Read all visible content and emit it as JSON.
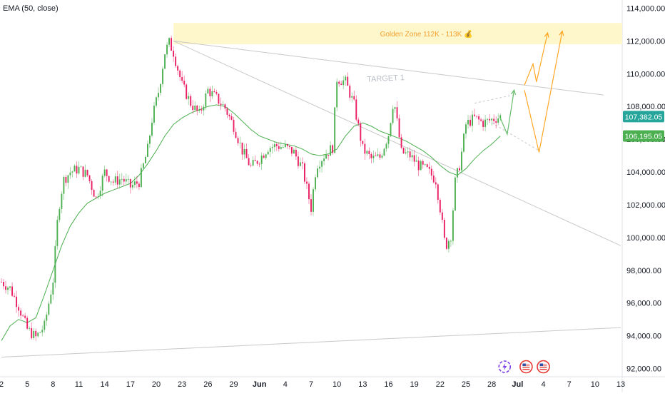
{
  "indicator": {
    "label": "EMA (50, close)",
    "color": "#4caf50"
  },
  "annotations": {
    "golden_zone": {
      "label": "Golden Zone 112K - 113K 💰",
      "y_from": 111800,
      "y_to": 113100,
      "fill": "#fff7cc",
      "text_color": "#f0a030"
    },
    "target1": {
      "label": "TARGET 1",
      "color": "#b8bcc4"
    }
  },
  "price_labels": {
    "last": {
      "text": "107,382.05",
      "value": 107382.05,
      "color": "#26a69a"
    },
    "ema": {
      "text": "106,195.05",
      "value": 106195.05,
      "color": "#4caf50"
    }
  },
  "colors": {
    "up": "#4caf50",
    "down": "#e91e63",
    "wick": "#888888",
    "trend": "#c8c8c8",
    "forecast_green": "#66bb6a",
    "forecast_orange": "#ffa726",
    "event_purple": "#7b3fe4",
    "event_red": "#e53935"
  },
  "chart_data": {
    "type": "candlestick",
    "y_axis": {
      "ticks": [
        92000,
        94000,
        96000,
        98000,
        100000,
        102000,
        104000,
        106000,
        108000,
        110000,
        112000,
        114000
      ],
      "tick_labels": [
        "92,000.00",
        "94,000.00",
        "96,000.00",
        "98,000.00",
        "100,000.00",
        "102,000.00",
        "104,000.00",
        "106,000.00",
        "108,000.00",
        "110,000.00",
        "112,000.00",
        "114,000.00"
      ],
      "range": [
        91500,
        114500
      ]
    },
    "x_axis": {
      "ticks": [
        {
          "label": "2",
          "day": 2,
          "bold": false
        },
        {
          "label": "5",
          "day": 5,
          "bold": false
        },
        {
          "label": "8",
          "day": 8,
          "bold": false
        },
        {
          "label": "11",
          "day": 11,
          "bold": false
        },
        {
          "label": "14",
          "day": 14,
          "bold": false
        },
        {
          "label": "17",
          "day": 17,
          "bold": false
        },
        {
          "label": "20",
          "day": 20,
          "bold": false
        },
        {
          "label": "23",
          "day": 23,
          "bold": false
        },
        {
          "label": "26",
          "day": 26,
          "bold": false
        },
        {
          "label": "29",
          "day": 29,
          "bold": false
        },
        {
          "label": "Jun",
          "day": 32,
          "bold": true
        },
        {
          "label": "4",
          "day": 35,
          "bold": false
        },
        {
          "label": "7",
          "day": 38,
          "bold": false
        },
        {
          "label": "10",
          "day": 41,
          "bold": false
        },
        {
          "label": "13",
          "day": 44,
          "bold": false
        },
        {
          "label": "16",
          "day": 47,
          "bold": false
        },
        {
          "label": "19",
          "day": 50,
          "bold": false
        },
        {
          "label": "22",
          "day": 53,
          "bold": false
        },
        {
          "label": "25",
          "day": 56,
          "bold": false
        },
        {
          "label": "28",
          "day": 59,
          "bold": false
        },
        {
          "label": "Jul",
          "day": 62,
          "bold": true
        },
        {
          "label": "4",
          "day": 65,
          "bold": false
        },
        {
          "label": "7",
          "day": 68,
          "bold": false
        },
        {
          "label": "10",
          "day": 71,
          "bold": false
        },
        {
          "label": "13",
          "day": 74,
          "bold": false
        }
      ],
      "range": [
        2,
        74
      ]
    },
    "price_path": [
      [
        2,
        97300
      ],
      [
        3,
        96900
      ],
      [
        4,
        95800
      ],
      [
        5,
        94400
      ],
      [
        6,
        93900
      ],
      [
        7,
        94600
      ],
      [
        8,
        97400
      ],
      [
        8.6,
        101600
      ],
      [
        9.2,
        103500
      ],
      [
        10,
        104000
      ],
      [
        11,
        104200
      ],
      [
        12,
        103800
      ],
      [
        13,
        102400
      ],
      [
        14,
        104000
      ],
      [
        15,
        103400
      ],
      [
        16,
        103600
      ],
      [
        17,
        103100
      ],
      [
        18,
        103400
      ],
      [
        19,
        105400
      ],
      [
        19.5,
        107200
      ],
      [
        20.3,
        109000
      ],
      [
        21,
        111300
      ],
      [
        21.5,
        111900
      ],
      [
        22,
        111300
      ],
      [
        23,
        109300
      ],
      [
        24,
        108200
      ],
      [
        25,
        107500
      ],
      [
        26,
        109000
      ],
      [
        27,
        108500
      ],
      [
        28,
        107900
      ],
      [
        29,
        106800
      ],
      [
        30,
        105300
      ],
      [
        31,
        104300
      ],
      [
        32,
        104800
      ],
      [
        33,
        105500
      ],
      [
        34,
        105600
      ],
      [
        35,
        105500
      ],
      [
        36,
        105200
      ],
      [
        37,
        104200
      ],
      [
        38,
        101800
      ],
      [
        38.6,
        104400
      ],
      [
        39.5,
        105000
      ],
      [
        40.5,
        105500
      ],
      [
        41,
        109700
      ],
      [
        42,
        109500
      ],
      [
        43,
        108100
      ],
      [
        44,
        105400
      ],
      [
        45,
        104800
      ],
      [
        46,
        104900
      ],
      [
        47,
        106300
      ],
      [
        47.6,
        108500
      ],
      [
        48.5,
        105200
      ],
      [
        49.5,
        105000
      ],
      [
        50.5,
        104400
      ],
      [
        51.5,
        104100
      ],
      [
        52.5,
        103500
      ],
      [
        53,
        101800
      ],
      [
        53.6,
        99400
      ],
      [
        54.3,
        100200
      ],
      [
        54.7,
        103300
      ],
      [
        55.3,
        104500
      ],
      [
        56,
        106900
      ],
      [
        57,
        107300
      ],
      [
        58,
        107000
      ],
      [
        59,
        107200
      ],
      [
        60,
        107382
      ]
    ],
    "ema_50": [
      [
        2,
        93700
      ],
      [
        3,
        94600
      ],
      [
        4,
        95000
      ],
      [
        5,
        94800
      ],
      [
        6,
        95100
      ],
      [
        7,
        96500
      ],
      [
        8,
        98000
      ],
      [
        9,
        99500
      ],
      [
        10,
        100700
      ],
      [
        11,
        101500
      ],
      [
        12,
        102100
      ],
      [
        13,
        102400
      ],
      [
        14,
        102700
      ],
      [
        15,
        102900
      ],
      [
        16,
        103100
      ],
      [
        17,
        103300
      ],
      [
        18,
        103800
      ],
      [
        19,
        104500
      ],
      [
        20,
        105300
      ],
      [
        21,
        106200
      ],
      [
        22,
        106900
      ],
      [
        23,
        107300
      ],
      [
        24,
        107600
      ],
      [
        25,
        107800
      ],
      [
        26,
        108000
      ],
      [
        27,
        108100
      ],
      [
        28,
        108000
      ],
      [
        29,
        107600
      ],
      [
        30,
        107100
      ],
      [
        31,
        106600
      ],
      [
        32,
        106200
      ],
      [
        33,
        106000
      ],
      [
        34,
        105800
      ],
      [
        35,
        105700
      ],
      [
        36,
        105600
      ],
      [
        37,
        105400
      ],
      [
        38,
        105100
      ],
      [
        39,
        105000
      ],
      [
        40,
        105100
      ],
      [
        41,
        105400
      ],
      [
        42,
        106200
      ],
      [
        43,
        106800
      ],
      [
        44,
        107000
      ],
      [
        45,
        106800
      ],
      [
        46,
        106500
      ],
      [
        47,
        106300
      ],
      [
        48,
        106100
      ],
      [
        49,
        105900
      ],
      [
        50,
        105600
      ],
      [
        51,
        105300
      ],
      [
        52,
        104900
      ],
      [
        53,
        104400
      ],
      [
        54,
        104000
      ],
      [
        55,
        103800
      ],
      [
        56,
        104200
      ],
      [
        57,
        104800
      ],
      [
        58,
        105300
      ],
      [
        59,
        105700
      ],
      [
        60,
        106195
      ]
    ],
    "trend_lines": [
      {
        "name": "upper-resistance",
        "from": [
          22,
          112000
        ],
        "to": [
          72,
          108700
        ]
      },
      {
        "name": "lower-resistance",
        "from": [
          22,
          112000
        ],
        "to": [
          74,
          99500
        ]
      },
      {
        "name": "base-support",
        "from": [
          2,
          92700
        ],
        "to": [
          74,
          94500
        ]
      }
    ],
    "forecast_paths": [
      {
        "name": "short-term",
        "color_key": "forecast_green",
        "points": [
          [
            60,
            107300
          ],
          [
            60.8,
            106300
          ],
          [
            61.6,
            109000
          ]
        ]
      },
      {
        "name": "scenario-a",
        "color_key": "forecast_orange",
        "points": [
          [
            62.8,
            109300
          ],
          [
            63.8,
            110600
          ],
          [
            64.2,
            109500
          ],
          [
            65.5,
            112500
          ]
        ]
      },
      {
        "name": "scenario-b",
        "color_key": "forecast_orange",
        "points": [
          [
            62.8,
            109000
          ],
          [
            64.5,
            105200
          ],
          [
            67.2,
            112600
          ]
        ]
      }
    ],
    "dashed_segments": [
      {
        "name": "target-guide",
        "from": [
          57,
          108200
        ],
        "to": [
          61.5,
          108700
        ]
      },
      {
        "name": "retest-guide",
        "from": [
          59,
          107000
        ],
        "to": [
          64.5,
          105300
        ]
      }
    ],
    "event_markers": [
      {
        "day": 60.5,
        "kind": "purple"
      },
      {
        "day": 63,
        "kind": "red"
      },
      {
        "day": 65,
        "kind": "red"
      }
    ]
  }
}
